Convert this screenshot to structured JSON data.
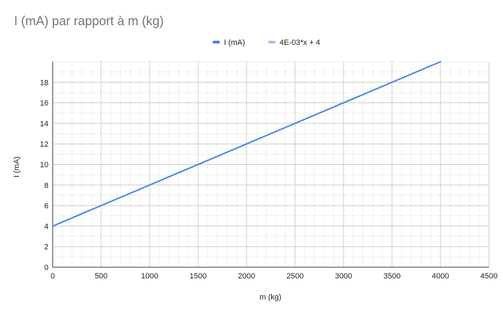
{
  "chart_data": {
    "type": "line",
    "title": "I (mA) par rapport à m (kg)",
    "xlabel": "m (kg)",
    "ylabel": "I (mA)",
    "xlim": [
      0,
      4500
    ],
    "ylim": [
      0,
      20
    ],
    "x_ticks": [
      0,
      500,
      1000,
      1500,
      2000,
      2500,
      3000,
      3500,
      4000,
      4500
    ],
    "y_ticks": [
      0,
      2,
      4,
      6,
      8,
      10,
      12,
      14,
      16,
      18
    ],
    "x_minor_step": 100,
    "y_minor_step": 1,
    "grid": true,
    "legend_position": "top",
    "series": [
      {
        "name": "I (mA)",
        "color": "#4a86e8",
        "x": [
          0,
          4000
        ],
        "y": [
          4,
          20
        ]
      },
      {
        "name": "4E-03*x + 4",
        "color": "#a4c2f4",
        "x": [
          0,
          4000
        ],
        "y": [
          4,
          20
        ]
      }
    ]
  }
}
